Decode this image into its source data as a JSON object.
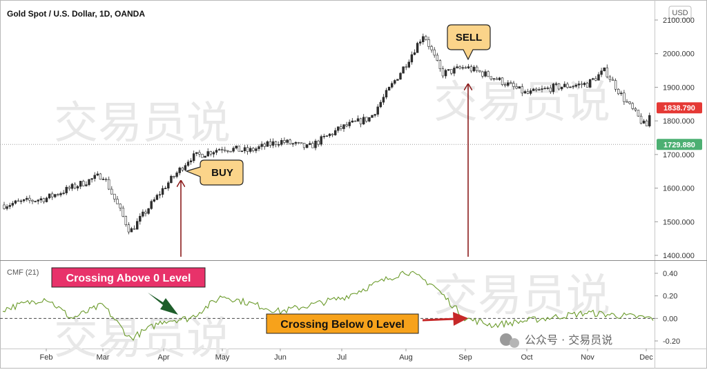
{
  "header": {
    "title": "Gold Spot / U.S. Dollar, 1D, OANDA",
    "currency_badge": "USD"
  },
  "price_axis": {
    "ticks": [
      {
        "value": 2100,
        "label": "2100.000"
      },
      {
        "value": 2000,
        "label": "2000.000"
      },
      {
        "value": 1900,
        "label": "1900.000"
      },
      {
        "value": 1800,
        "label": "1800.000"
      },
      {
        "value": 1700,
        "label": "1700.000"
      },
      {
        "value": 1600,
        "label": "1600.000"
      },
      {
        "value": 1500,
        "label": "1500.000"
      },
      {
        "value": 1400,
        "label": "1400.000"
      }
    ],
    "last_price": {
      "value": 1838.79,
      "label": "1838.790",
      "color": "#e53935"
    },
    "ref_price": {
      "value": 1729.88,
      "label": "1729.880",
      "color": "#4caf72"
    }
  },
  "indicator": {
    "name": "CMF (21)",
    "ticks": [
      {
        "value": 0.4,
        "label": "0.40"
      },
      {
        "value": 0.2,
        "label": "0.20"
      },
      {
        "value": 0.0,
        "label": "0.00"
      },
      {
        "value": -0.2,
        "label": "-0.20"
      }
    ]
  },
  "months": [
    "Feb",
    "Mar",
    "Apr",
    "May",
    "Jun",
    "Jul",
    "Aug",
    "Sep",
    "Oct",
    "Nov",
    "Dec"
  ],
  "callouts": {
    "buy": "BUY",
    "sell": "SELL",
    "crossing_above": "Crossing Above 0 Level",
    "crossing_below": "Crossing Below 0 Level"
  },
  "watermark": {
    "main": "交易员说",
    "account": "公众号 · 交易员说"
  },
  "colors": {
    "up_candle": "#26a69a",
    "down_candle": "#ef5350",
    "cmf_line": "#6a9a2a",
    "signal_arrow": "#8b1a1a",
    "callout_fill": "#fbd48a",
    "crossing_above_fill": "#e8326a",
    "crossing_below_fill": "#f7a21b"
  },
  "chart_data": {
    "type": "candlestick",
    "title": "Gold Spot / U.S. Dollar, 1D, OANDA",
    "ylim": [
      1390,
      2120
    ],
    "x_range": [
      "Jan",
      "Dec"
    ],
    "price_series_checkpoints": [
      {
        "x": "Jan",
        "close": 1550
      },
      {
        "x": "Feb",
        "close": 1570
      },
      {
        "x": "Mar",
        "close": 1640
      },
      {
        "x": "Mar",
        "close": 1470
      },
      {
        "x": "Apr",
        "close": 1600
      },
      {
        "x": "Apr",
        "close": 1690
      },
      {
        "x": "May",
        "close": 1720
      },
      {
        "x": "May",
        "close": 1710
      },
      {
        "x": "Jun",
        "close": 1740
      },
      {
        "x": "Jun",
        "close": 1720
      },
      {
        "x": "Jul",
        "close": 1780
      },
      {
        "x": "Jul",
        "close": 1810
      },
      {
        "x": "Aug",
        "close": 1970
      },
      {
        "x": "Aug",
        "close": 2060
      },
      {
        "x": "Aug",
        "close": 1940
      },
      {
        "x": "Sep",
        "close": 1960
      },
      {
        "x": "Sep",
        "close": 1930
      },
      {
        "x": "Oct",
        "close": 1880
      },
      {
        "x": "Oct",
        "close": 1900
      },
      {
        "x": "Nov",
        "close": 1910
      },
      {
        "x": "Nov",
        "close": 1950
      },
      {
        "x": "Nov",
        "close": 1870
      },
      {
        "x": "Dec",
        "close": 1780
      },
      {
        "x": "Dec",
        "close": 1838.79
      }
    ],
    "cmf_series_checkpoints": [
      {
        "x": "Jan",
        "value": 0.08
      },
      {
        "x": "Feb",
        "value": 0.18
      },
      {
        "x": "Feb",
        "value": 0.0
      },
      {
        "x": "Mar",
        "value": 0.12
      },
      {
        "x": "Mar",
        "value": -0.18
      },
      {
        "x": "Apr",
        "value": -0.02
      },
      {
        "x": "Apr",
        "value": 0.0
      },
      {
        "x": "May",
        "value": 0.2
      },
      {
        "x": "Jun",
        "value": 0.06
      },
      {
        "x": "Jul",
        "value": 0.18
      },
      {
        "x": "Aug",
        "value": 0.42
      },
      {
        "x": "Aug",
        "value": 0.3
      },
      {
        "x": "Sep",
        "value": 0.0
      },
      {
        "x": "Sep",
        "value": -0.06
      },
      {
        "x": "Oct",
        "value": -0.02
      },
      {
        "x": "Nov",
        "value": 0.05
      },
      {
        "x": "Dec",
        "value": 0.0
      }
    ]
  }
}
